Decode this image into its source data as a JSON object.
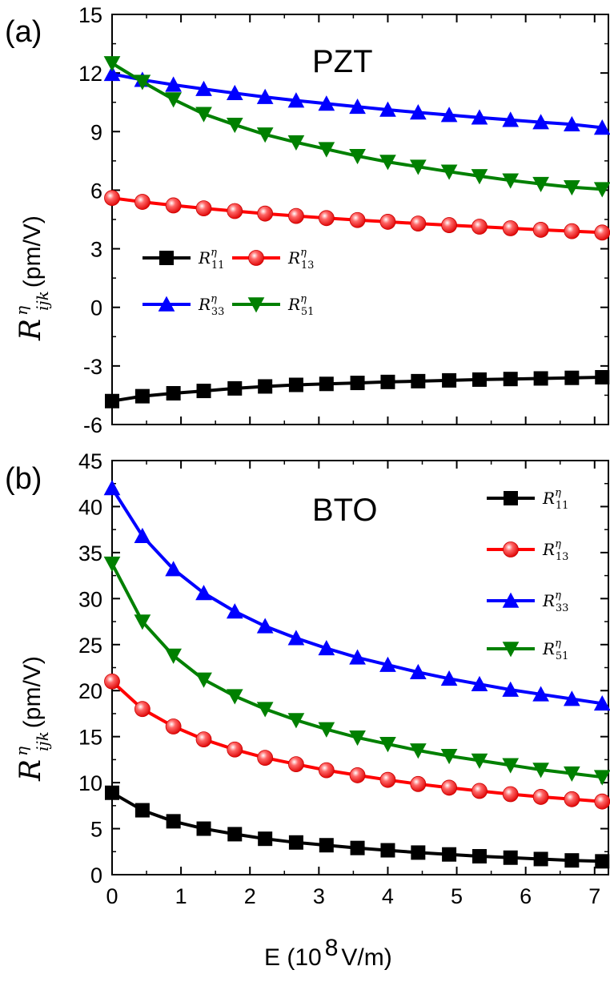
{
  "chart_data": [
    {
      "type": "line",
      "panel_label": "(a)",
      "title": "PZT",
      "xlabel": "E (10^8 V/m)",
      "ylabel": "R^η_ijk (pm/V)",
      "xlim": [
        0,
        7.2
      ],
      "ylim": [
        -6,
        15
      ],
      "xticks": [
        "0",
        "1",
        "2",
        "3",
        "4",
        "5",
        "6",
        "7"
      ],
      "yticks": [
        "-6",
        "-3",
        "0",
        "3",
        "6",
        "9",
        "12",
        "15"
      ],
      "x": [
        0,
        0.44,
        0.89,
        1.33,
        1.78,
        2.22,
        2.67,
        3.11,
        3.56,
        4.0,
        4.44,
        4.89,
        5.33,
        5.78,
        6.22,
        6.67,
        7.11
      ],
      "legend_position": "middle-left",
      "series": [
        {
          "name": "R11",
          "sub": "11",
          "marker": "square",
          "color": "#000000",
          "values": [
            -4.8,
            -4.55,
            -4.4,
            -4.28,
            -4.15,
            -4.05,
            -3.97,
            -3.92,
            -3.87,
            -3.82,
            -3.78,
            -3.74,
            -3.7,
            -3.67,
            -3.64,
            -3.61,
            -3.58
          ]
        },
        {
          "name": "R13",
          "sub": "13",
          "marker": "circle",
          "color": "#ff0000",
          "values": [
            5.6,
            5.4,
            5.22,
            5.07,
            4.93,
            4.8,
            4.68,
            4.57,
            4.47,
            4.38,
            4.29,
            4.21,
            4.13,
            4.05,
            3.97,
            3.9,
            3.83
          ]
        },
        {
          "name": "R33",
          "sub": "33",
          "marker": "triangle-up",
          "color": "#0000ff",
          "values": [
            11.95,
            11.65,
            11.4,
            11.18,
            10.97,
            10.77,
            10.59,
            10.43,
            10.27,
            10.12,
            9.98,
            9.85,
            9.72,
            9.6,
            9.48,
            9.37,
            9.2
          ]
        },
        {
          "name": "R51",
          "sub": "51",
          "marker": "triangle-down",
          "color": "#008000",
          "values": [
            12.5,
            11.55,
            10.65,
            9.9,
            9.35,
            8.85,
            8.45,
            8.1,
            7.75,
            7.45,
            7.2,
            6.95,
            6.72,
            6.5,
            6.32,
            6.15,
            6.05
          ]
        }
      ]
    },
    {
      "type": "line",
      "panel_label": "(b)",
      "title": "BTO",
      "xlabel": "E (10^8 V/m)",
      "ylabel": "R^η_ijk (pm/V)",
      "xlim": [
        0,
        7.2
      ],
      "ylim": [
        0,
        45
      ],
      "xticks": [
        "0",
        "1",
        "2",
        "3",
        "4",
        "5",
        "6",
        "7"
      ],
      "yticks": [
        "0",
        "5",
        "10",
        "15",
        "20",
        "25",
        "30",
        "35",
        "40",
        "45"
      ],
      "x": [
        0,
        0.44,
        0.89,
        1.33,
        1.78,
        2.22,
        2.67,
        3.11,
        3.56,
        4.0,
        4.44,
        4.89,
        5.33,
        5.78,
        6.22,
        6.67,
        7.11
      ],
      "legend_position": "top-right",
      "series": [
        {
          "name": "R11",
          "sub": "11",
          "marker": "square",
          "color": "#000000",
          "values": [
            8.9,
            7.0,
            5.8,
            5.0,
            4.4,
            3.9,
            3.5,
            3.2,
            2.9,
            2.65,
            2.4,
            2.2,
            2.0,
            1.85,
            1.7,
            1.55,
            1.45
          ]
        },
        {
          "name": "R13",
          "sub": "13",
          "marker": "circle",
          "color": "#ff0000",
          "values": [
            21.0,
            18.0,
            16.1,
            14.7,
            13.6,
            12.7,
            12.0,
            11.35,
            10.8,
            10.3,
            9.85,
            9.45,
            9.1,
            8.75,
            8.45,
            8.2,
            7.95
          ]
        },
        {
          "name": "R33",
          "sub": "33",
          "marker": "triangle-up",
          "color": "#0000ff",
          "values": [
            42.0,
            36.8,
            33.2,
            30.6,
            28.6,
            27.0,
            25.7,
            24.6,
            23.6,
            22.8,
            22.0,
            21.3,
            20.7,
            20.1,
            19.6,
            19.1,
            18.6
          ]
        },
        {
          "name": "R51",
          "sub": "51",
          "marker": "triangle-down",
          "color": "#008000",
          "values": [
            33.8,
            27.5,
            23.8,
            21.2,
            19.4,
            18.0,
            16.8,
            15.8,
            14.9,
            14.2,
            13.5,
            12.9,
            12.4,
            11.9,
            11.4,
            11.0,
            10.6
          ]
        }
      ]
    }
  ],
  "xlabel_text": "E (10",
  "xlabel_exp": "8",
  "xlabel_unit": " V/m)",
  "ylabel_symbol": "R",
  "ylabel_sup": "η",
  "ylabel_sub": "ijk",
  "ylabel_unit": " (pm/V)",
  "legend_symbol": "R",
  "legend_sup": "η"
}
